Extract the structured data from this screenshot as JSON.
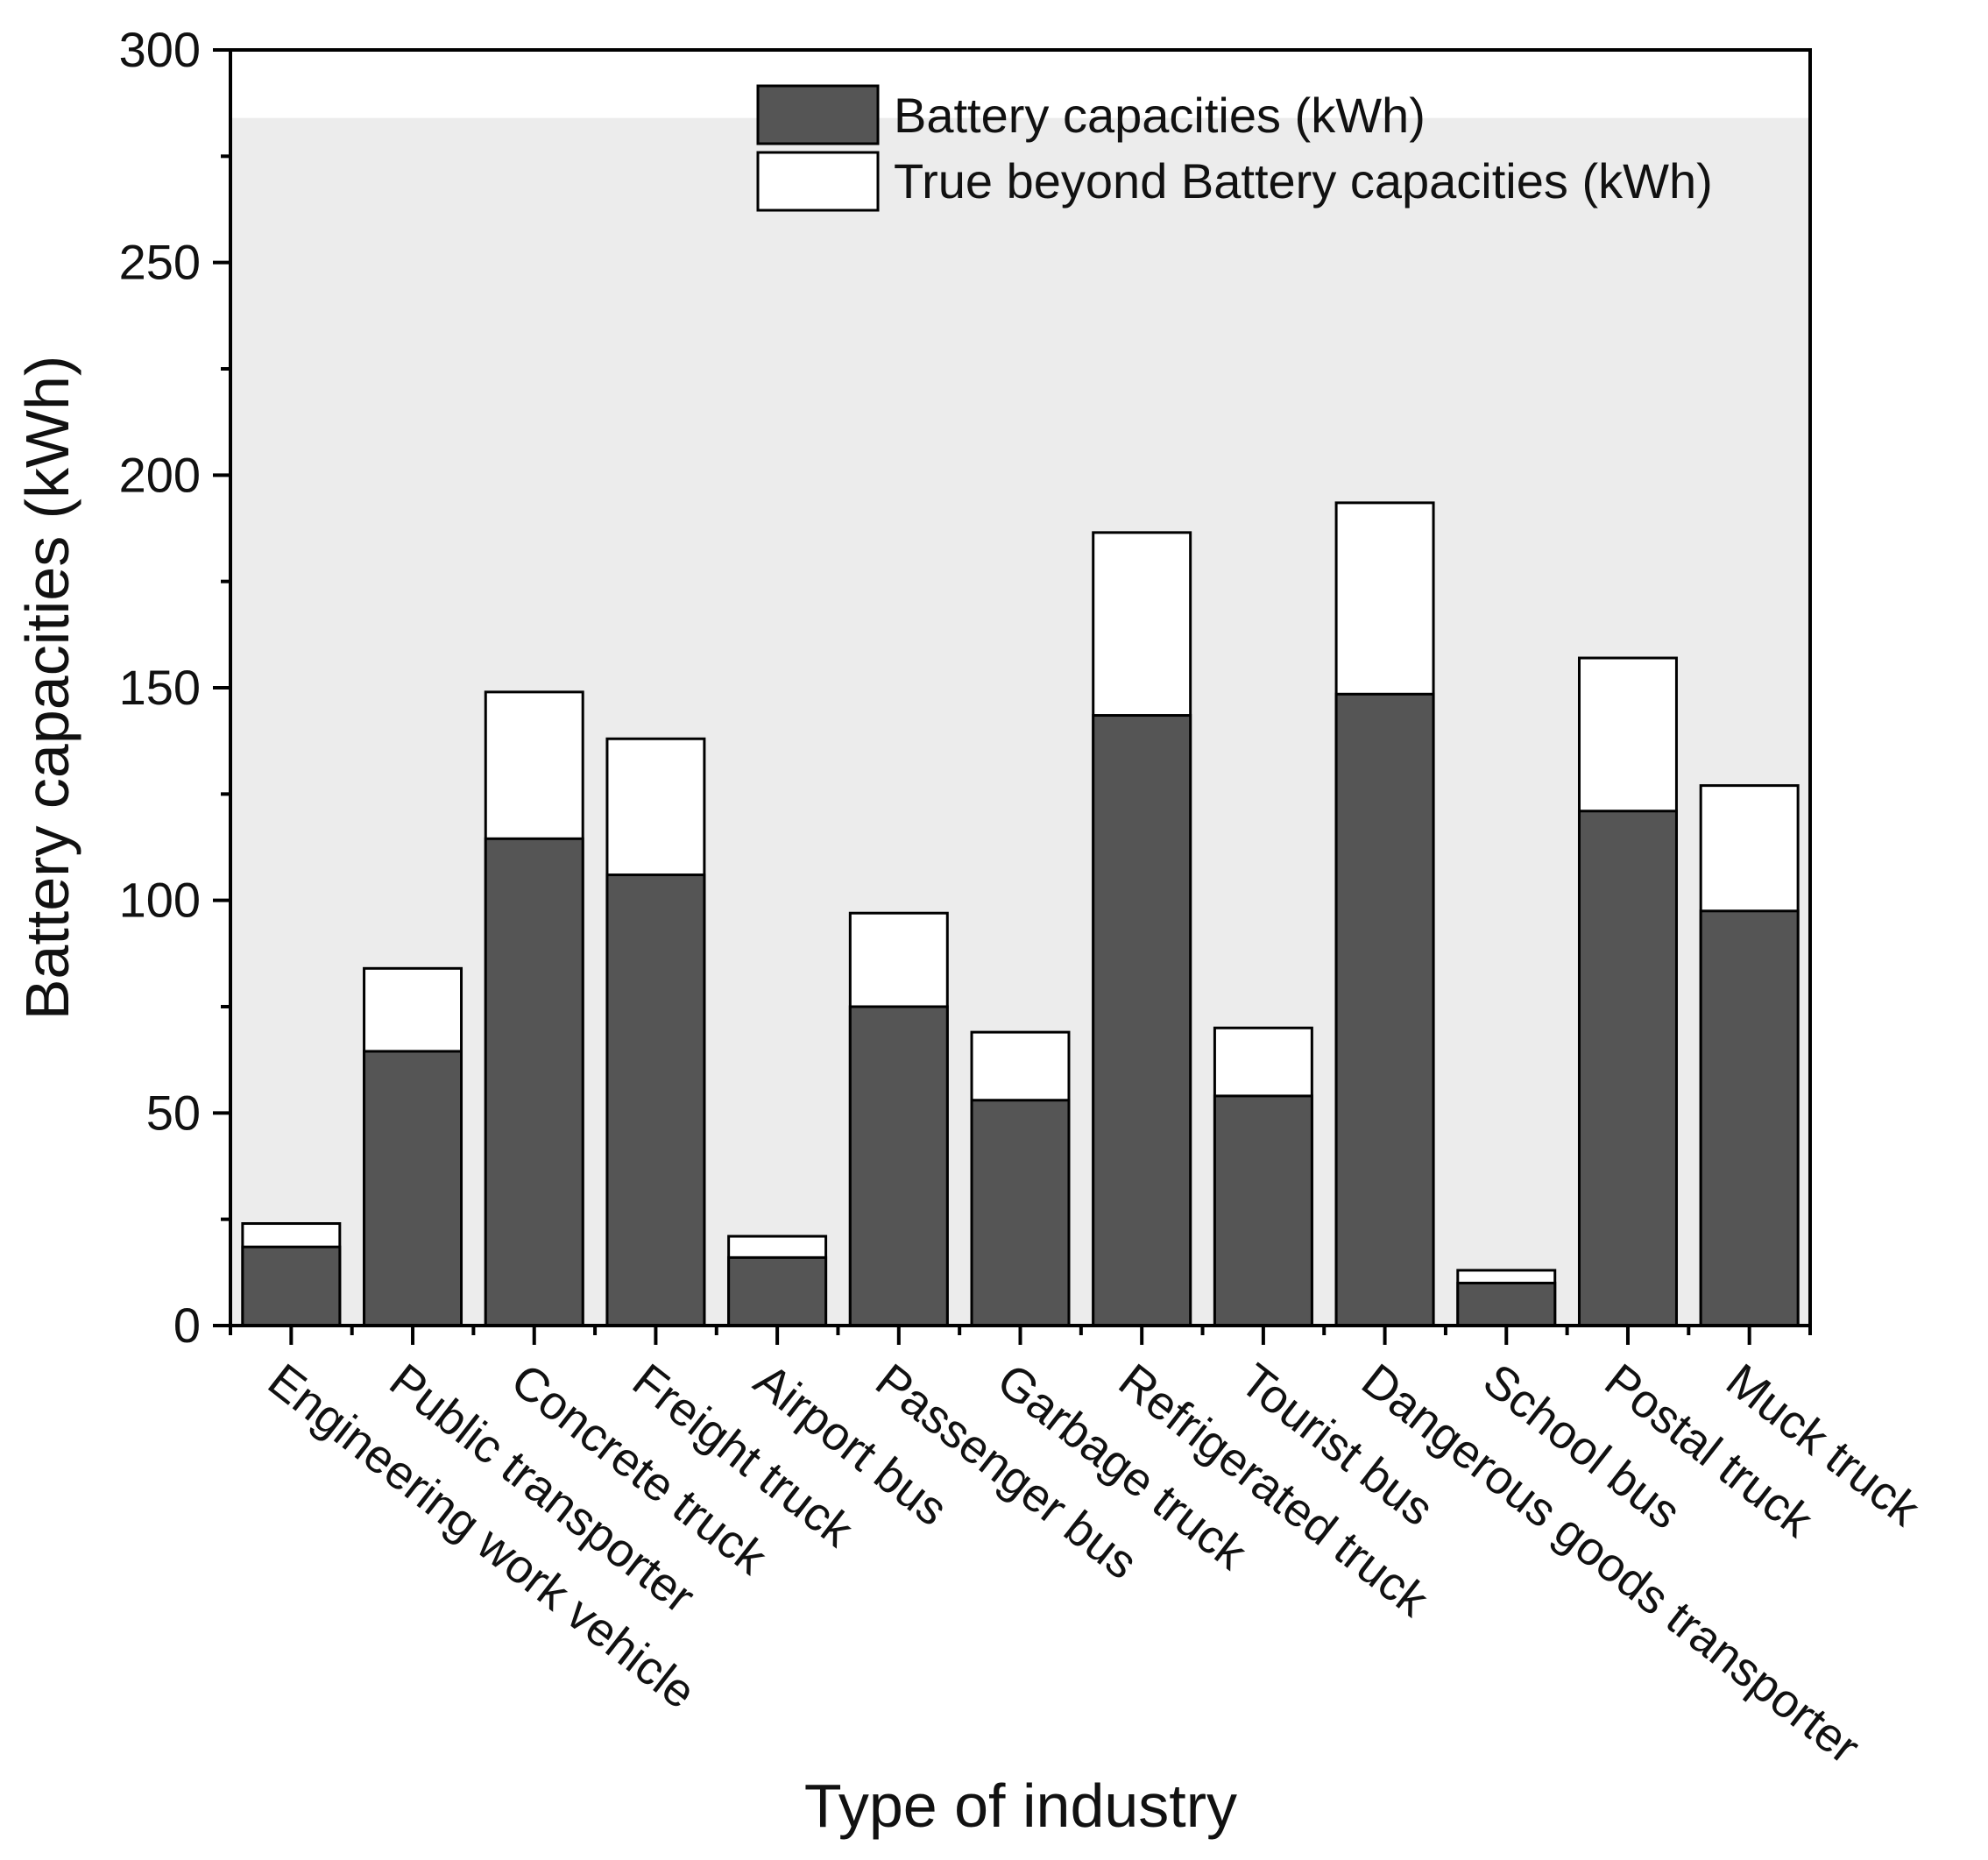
{
  "chart_data": {
    "type": "bar",
    "stacked": true,
    "title": "",
    "xlabel": "Type of industry",
    "ylabel": "Battery capacities (kWh)",
    "ylim": [
      0,
      300
    ],
    "yticks": [
      "0",
      "50",
      "100",
      "150",
      "200",
      "250",
      "300"
    ],
    "background_band_max": 284,
    "legend_position": "top-right",
    "categories": [
      "Engineering work vehicle",
      "Public transporter",
      "Concrete truck",
      "Freight truck",
      "Airport bus",
      "Passenger bus",
      "Garbage truck",
      "Refrigerated truck",
      "Tourist bus",
      "Dangerous goods transporter",
      "School bus",
      "Postal truck",
      "Muck truck"
    ],
    "series": [
      {
        "name": "Battery capacities (kWh)",
        "color": "#555555",
        "values": [
          18.5,
          64.5,
          114.5,
          106,
          16,
          75,
          53,
          143.5,
          54,
          148.5,
          10,
          121,
          97.5
        ]
      },
      {
        "name": "True beyond Battery capacities (kWh)",
        "color": "#ffffff",
        "totals": [
          24,
          84,
          149,
          138,
          21,
          97,
          69,
          186.5,
          70,
          193.5,
          13,
          157,
          127
        ],
        "values": [
          5.5,
          19.5,
          34.5,
          32,
          5,
          22,
          16,
          43,
          16,
          45,
          3,
          36,
          29.5
        ]
      }
    ]
  },
  "colors": {
    "plot_band": "#ececec",
    "axis": "#000000"
  }
}
